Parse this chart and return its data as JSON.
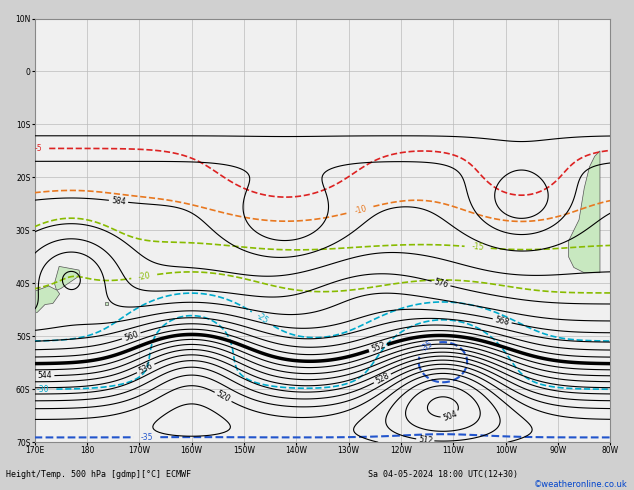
{
  "title_bottom": "Height/Temp. 500 hPa [gdmp][°C] ECMWF",
  "title_date": "Sa 04-05-2024 18:00 UTC(12+30)",
  "credit": "©weatheronline.co.uk",
  "background_color": "#d0d0d0",
  "map_background": "#f0f0f0",
  "land_color": "#c8e8c0",
  "figsize": [
    6.34,
    4.9
  ],
  "dpi": 100,
  "xlim": [
    170,
    280
  ],
  "ylim": [
    -70,
    10
  ],
  "grid_color": "#bbbbbb",
  "grid_lw": 0.5,
  "black_contour_color": "#000000",
  "thick_contour_value": 552,
  "red_contour_color": "#dd2222",
  "orange_contour_color": "#e87820",
  "green_contour_color": "#88bb00",
  "cyan_contour_color": "#00aacc",
  "blue_contour_color": "#2255cc"
}
